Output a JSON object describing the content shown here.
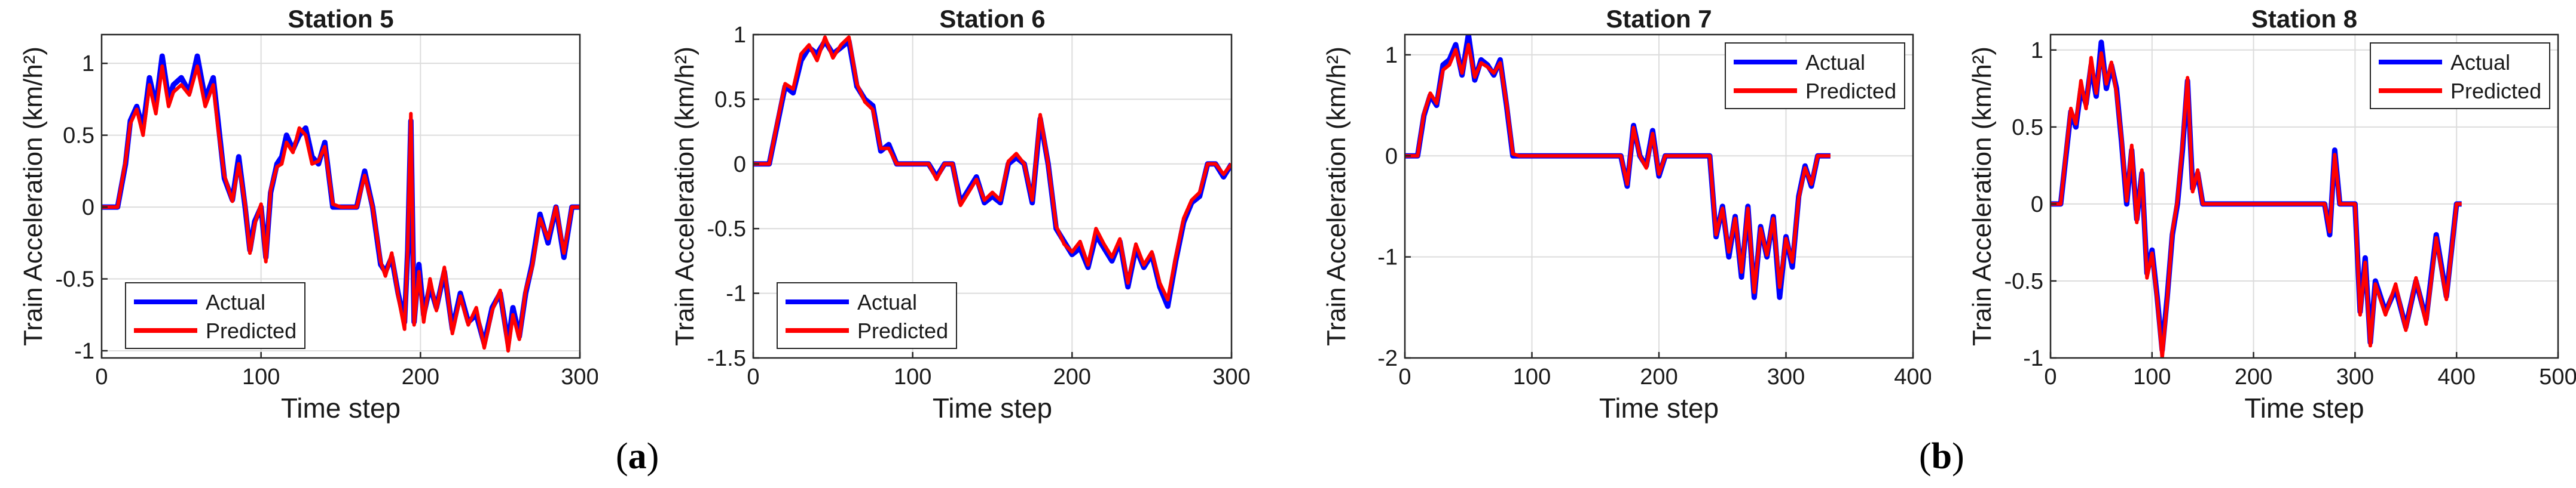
{
  "captions": {
    "a": "(a)",
    "b": "(b)"
  },
  "caption_parts": {
    "a": {
      "open": "(",
      "letter": "a",
      "close": ")"
    },
    "b": {
      "open": "(",
      "letter": "b",
      "close": ")"
    }
  },
  "chart_data": [
    {
      "type": "line",
      "title": "Station 5",
      "xlabel": "Time step",
      "ylabel": "Train Acceleration (km/h²)",
      "xlim": [
        0,
        300
      ],
      "ylim": [
        -1.05,
        1.2
      ],
      "xticks": [
        0,
        100,
        200,
        300
      ],
      "yticks": [
        -1,
        -0.5,
        0,
        0.5,
        1
      ],
      "grid": true,
      "legend_position": "bottom-left",
      "series": [
        {
          "name": "Actual",
          "color": "#0000ff",
          "x": [
            0,
            10,
            15,
            18,
            22,
            26,
            30,
            34,
            38,
            42,
            45,
            50,
            55,
            60,
            65,
            70,
            73,
            77,
            82,
            86,
            90,
            93,
            96,
            100,
            103,
            106,
            110,
            113,
            116,
            120,
            124,
            128,
            132,
            136,
            140,
            145,
            150,
            155,
            160,
            165,
            170,
            175,
            178,
            182,
            186,
            190,
            192,
            194,
            196,
            199,
            202,
            206,
            210,
            215,
            220,
            225,
            230,
            235,
            240,
            245,
            250,
            255,
            258,
            262,
            266,
            270,
            275,
            280,
            285,
            290,
            295,
            300
          ],
          "y": [
            0,
            0,
            0.3,
            0.6,
            0.7,
            0.55,
            0.9,
            0.7,
            1.05,
            0.75,
            0.85,
            0.9,
            0.8,
            1.05,
            0.75,
            0.9,
            0.6,
            0.2,
            0.05,
            0.35,
            0.0,
            -0.3,
            -0.1,
            0.0,
            -0.35,
            0.1,
            0.3,
            0.35,
            0.5,
            0.4,
            0.5,
            0.55,
            0.35,
            0.3,
            0.45,
            0.0,
            0.0,
            0.0,
            0.0,
            0.25,
            0.0,
            -0.4,
            -0.45,
            -0.35,
            -0.6,
            -0.8,
            -0.3,
            0.6,
            -0.8,
            -0.4,
            -0.75,
            -0.55,
            -0.7,
            -0.45,
            -0.85,
            -0.6,
            -0.8,
            -0.75,
            -0.95,
            -0.7,
            -0.6,
            -0.95,
            -0.7,
            -0.9,
            -0.6,
            -0.4,
            -0.05,
            -0.25,
            0.0,
            -0.35,
            0.0,
            0.0
          ]
        },
        {
          "name": "Predicted",
          "color": "#ff0000",
          "x": [
            0,
            10,
            15,
            18,
            22,
            26,
            30,
            34,
            38,
            42,
            45,
            50,
            55,
            60,
            65,
            70,
            73,
            77,
            82,
            86,
            90,
            93,
            96,
            100,
            103,
            106,
            110,
            113,
            116,
            120,
            124,
            128,
            132,
            136,
            140,
            145,
            150,
            155,
            160,
            165,
            170,
            175,
            178,
            182,
            186,
            190,
            192,
            194,
            196,
            199,
            202,
            206,
            210,
            215,
            220,
            225,
            230,
            235,
            240,
            245,
            250,
            255,
            258,
            262,
            266,
            270,
            275,
            280,
            285,
            290,
            295,
            300
          ],
          "y": [
            0,
            0,
            0.32,
            0.58,
            0.68,
            0.5,
            0.85,
            0.65,
            0.98,
            0.7,
            0.8,
            0.85,
            0.78,
            0.98,
            0.7,
            0.85,
            0.55,
            0.22,
            0.04,
            0.3,
            0.02,
            -0.32,
            -0.12,
            0.02,
            -0.38,
            0.12,
            0.28,
            0.3,
            0.45,
            0.38,
            0.55,
            0.5,
            0.3,
            0.32,
            0.42,
            0.02,
            0.0,
            0.0,
            0.0,
            0.22,
            0.0,
            -0.38,
            -0.48,
            -0.32,
            -0.62,
            -0.85,
            -0.28,
            0.65,
            -0.82,
            -0.45,
            -0.8,
            -0.5,
            -0.72,
            -0.42,
            -0.88,
            -0.62,
            -0.82,
            -0.7,
            -0.98,
            -0.72,
            -0.58,
            -1.0,
            -0.75,
            -0.92,
            -0.58,
            -0.42,
            -0.08,
            -0.22,
            0.0,
            -0.32,
            0.0,
            0.0
          ]
        }
      ]
    },
    {
      "type": "line",
      "title": "Station 6",
      "xlabel": "Time step",
      "ylabel": "Train Acceleration (km/h²)",
      "xlim": [
        0,
        300
      ],
      "ylim": [
        -1.5,
        1.0
      ],
      "xticks": [
        0,
        100,
        200,
        300
      ],
      "yticks": [
        -1.5,
        -1,
        -0.5,
        0,
        0.5,
        1
      ],
      "grid": true,
      "legend_position": "bottom-left",
      "series": [
        {
          "name": "Actual",
          "color": "#0000ff",
          "x": [
            0,
            10,
            15,
            20,
            25,
            30,
            35,
            40,
            45,
            50,
            55,
            60,
            65,
            70,
            75,
            80,
            85,
            90,
            95,
            100,
            105,
            110,
            115,
            120,
            125,
            130,
            135,
            140,
            145,
            150,
            155,
            160,
            165,
            170,
            175,
            180,
            185,
            190,
            195,
            200,
            205,
            210,
            215,
            220,
            225,
            230,
            235,
            240,
            245,
            250,
            255,
            260,
            265,
            270,
            275,
            280,
            285,
            290,
            295,
            300
          ],
          "y": [
            0,
            0,
            0.3,
            0.6,
            0.55,
            0.8,
            0.9,
            0.85,
            0.95,
            0.85,
            0.9,
            0.95,
            0.6,
            0.5,
            0.45,
            0.1,
            0.15,
            0.0,
            0.0,
            0.0,
            0.0,
            0.0,
            -0.1,
            0.0,
            0.0,
            -0.3,
            -0.2,
            -0.1,
            -0.3,
            -0.25,
            -0.3,
            0.0,
            0.05,
            0.0,
            -0.3,
            0.35,
            0.0,
            -0.5,
            -0.6,
            -0.7,
            -0.65,
            -0.8,
            -0.55,
            -0.65,
            -0.75,
            -0.6,
            -0.95,
            -0.65,
            -0.8,
            -0.7,
            -0.95,
            -1.1,
            -0.75,
            -0.45,
            -0.3,
            -0.25,
            0.0,
            0.0,
            -0.1,
            0.0
          ]
        },
        {
          "name": "Predicted",
          "color": "#ff0000",
          "x": [
            0,
            10,
            15,
            20,
            25,
            30,
            35,
            40,
            45,
            50,
            55,
            60,
            65,
            70,
            75,
            80,
            85,
            90,
            95,
            100,
            105,
            110,
            115,
            120,
            125,
            130,
            135,
            140,
            145,
            150,
            155,
            160,
            165,
            170,
            175,
            180,
            185,
            190,
            195,
            200,
            205,
            210,
            215,
            220,
            225,
            230,
            235,
            240,
            245,
            250,
            255,
            260,
            265,
            270,
            275,
            280,
            285,
            290,
            295,
            300
          ],
          "y": [
            0,
            0,
            0.32,
            0.62,
            0.58,
            0.85,
            0.92,
            0.8,
            0.98,
            0.82,
            0.92,
            0.98,
            0.62,
            0.48,
            0.42,
            0.12,
            0.12,
            0.0,
            0.0,
            0.0,
            0.0,
            0.0,
            -0.12,
            0.0,
            0.0,
            -0.32,
            -0.22,
            -0.12,
            -0.28,
            -0.22,
            -0.28,
            0.02,
            0.08,
            0.0,
            -0.28,
            0.38,
            0.0,
            -0.48,
            -0.62,
            -0.68,
            -0.6,
            -0.78,
            -0.5,
            -0.62,
            -0.72,
            -0.58,
            -0.92,
            -0.62,
            -0.78,
            -0.68,
            -0.92,
            -1.05,
            -0.72,
            -0.42,
            -0.28,
            -0.22,
            0.0,
            0.0,
            -0.08,
            0.0
          ]
        }
      ]
    },
    {
      "type": "line",
      "title": "Station 7",
      "xlabel": "Time step",
      "ylabel": "Train Acceleration (km/h²)",
      "xlim": [
        0,
        400
      ],
      "ylim": [
        -2,
        1.2
      ],
      "xticks": [
        0,
        100,
        200,
        300,
        400
      ],
      "yticks": [
        -2,
        -1,
        0,
        1
      ],
      "grid": true,
      "legend_position": "top-right",
      "series": [
        {
          "name": "Actual",
          "color": "#0000ff",
          "x": [
            0,
            10,
            15,
            20,
            25,
            30,
            35,
            40,
            45,
            50,
            55,
            60,
            65,
            70,
            75,
            80,
            85,
            90,
            100,
            150,
            170,
            175,
            180,
            185,
            190,
            195,
            200,
            205,
            210,
            220,
            230,
            240,
            245,
            250,
            255,
            260,
            265,
            270,
            275,
            280,
            285,
            290,
            295,
            300,
            305,
            310,
            315,
            320,
            325,
            330,
            335
          ],
          "y": [
            0,
            0,
            0.4,
            0.6,
            0.5,
            0.9,
            0.95,
            1.1,
            0.8,
            1.2,
            0.75,
            0.95,
            0.9,
            0.8,
            0.95,
            0.5,
            0.0,
            0.0,
            0.0,
            0.0,
            0.0,
            -0.3,
            0.3,
            0.0,
            -0.1,
            0.25,
            -0.2,
            0.0,
            0.0,
            0.0,
            0.0,
            0.0,
            -0.8,
            -0.5,
            -1.0,
            -0.6,
            -1.2,
            -0.5,
            -1.4,
            -0.7,
            -1.0,
            -0.6,
            -1.4,
            -0.8,
            -1.1,
            -0.4,
            -0.1,
            -0.3,
            0.0,
            0.0,
            0.0
          ]
        },
        {
          "name": "Predicted",
          "color": "#ff0000",
          "x": [
            0,
            10,
            15,
            20,
            25,
            30,
            35,
            40,
            45,
            50,
            55,
            60,
            65,
            70,
            75,
            80,
            85,
            90,
            100,
            150,
            170,
            175,
            180,
            185,
            190,
            195,
            200,
            205,
            210,
            220,
            230,
            240,
            245,
            250,
            255,
            260,
            265,
            270,
            275,
            280,
            285,
            290,
            295,
            300,
            305,
            310,
            315,
            320,
            325,
            330,
            335
          ],
          "y": [
            0,
            0,
            0.42,
            0.62,
            0.52,
            0.85,
            0.9,
            1.05,
            0.82,
            1.1,
            0.78,
            0.92,
            0.88,
            0.82,
            0.92,
            0.52,
            0.02,
            0.0,
            0.0,
            0.0,
            0.0,
            -0.28,
            0.28,
            0.0,
            -0.12,
            0.22,
            -0.18,
            0.0,
            0.0,
            0.0,
            0.0,
            0.0,
            -0.78,
            -0.52,
            -0.95,
            -0.62,
            -1.15,
            -0.52,
            -1.35,
            -0.72,
            -0.98,
            -0.62,
            -1.3,
            -0.82,
            -1.05,
            -0.42,
            -0.12,
            -0.28,
            0.0,
            0.0,
            0.0
          ]
        }
      ]
    },
    {
      "type": "line",
      "title": "Station 8",
      "xlabel": "Time step",
      "ylabel": "Train Acceleration (km/h²)",
      "xlim": [
        0,
        500
      ],
      "ylim": [
        -1,
        1.1
      ],
      "xticks": [
        0,
        100,
        200,
        300,
        400,
        500
      ],
      "yticks": [
        -1,
        -0.5,
        0,
        0.5,
        1
      ],
      "grid": true,
      "legend_position": "top-right",
      "series": [
        {
          "name": "Actual",
          "color": "#0000ff",
          "x": [
            0,
            10,
            15,
            20,
            25,
            30,
            35,
            40,
            45,
            50,
            55,
            60,
            65,
            70,
            75,
            80,
            85,
            90,
            95,
            100,
            105,
            110,
            115,
            120,
            125,
            130,
            135,
            140,
            145,
            150,
            160,
            200,
            250,
            270,
            275,
            280,
            285,
            300,
            305,
            310,
            315,
            320,
            330,
            340,
            350,
            360,
            370,
            380,
            390,
            400,
            405
          ],
          "y": [
            0,
            0,
            0.3,
            0.6,
            0.5,
            0.75,
            0.65,
            0.9,
            0.7,
            1.05,
            0.75,
            0.9,
            0.75,
            0.4,
            0.0,
            0.35,
            -0.1,
            0.2,
            -0.45,
            -0.3,
            -0.6,
            -0.95,
            -0.6,
            -0.2,
            0.0,
            0.35,
            0.8,
            0.1,
            0.2,
            0.0,
            0.0,
            0.0,
            0.0,
            0.0,
            -0.2,
            0.35,
            0.0,
            0.0,
            -0.7,
            -0.35,
            -0.9,
            -0.5,
            -0.7,
            -0.55,
            -0.8,
            -0.5,
            -0.75,
            -0.2,
            -0.6,
            0.0,
            0.0
          ]
        },
        {
          "name": "Predicted",
          "color": "#ff0000",
          "x": [
            0,
            10,
            15,
            20,
            25,
            30,
            35,
            40,
            45,
            50,
            55,
            60,
            65,
            70,
            75,
            80,
            85,
            90,
            95,
            100,
            105,
            110,
            115,
            120,
            125,
            130,
            135,
            140,
            145,
            150,
            160,
            200,
            250,
            270,
            275,
            280,
            285,
            300,
            305,
            310,
            315,
            320,
            330,
            340,
            350,
            360,
            370,
            380,
            390,
            400,
            405
          ],
          "y": [
            0,
            0,
            0.32,
            0.62,
            0.52,
            0.8,
            0.62,
            0.95,
            0.72,
            0.98,
            0.78,
            0.92,
            0.72,
            0.42,
            0.02,
            0.38,
            -0.12,
            0.22,
            -0.48,
            -0.32,
            -0.62,
            -1.0,
            -0.62,
            -0.18,
            0.02,
            0.38,
            0.82,
            0.08,
            0.22,
            0.0,
            0.0,
            0.0,
            0.0,
            0.0,
            -0.18,
            0.32,
            0.0,
            0.0,
            -0.72,
            -0.38,
            -0.92,
            -0.52,
            -0.72,
            -0.52,
            -0.82,
            -0.48,
            -0.78,
            -0.22,
            -0.62,
            0.0,
            0.0
          ]
        }
      ]
    }
  ]
}
